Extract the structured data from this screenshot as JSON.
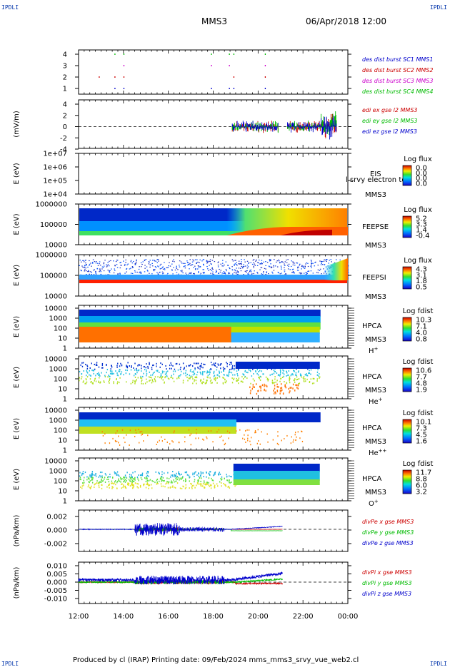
{
  "header": {
    "corner_left": "IPDLI",
    "corner_right": "IPDLI",
    "spacecraft": "MMS3",
    "datetime": "06/Apr/2018 12:00"
  },
  "footer": {
    "text": "Produced by cl (IRAP)   Printing date: 09/Feb/2024   mms_mms3_srvy_vue_web2.cl",
    "corner_left": "IPDLI",
    "corner_right": "IPDLI"
  },
  "x_axis": {
    "ticks": [
      "12:00",
      "14:00",
      "16:00",
      "18:00",
      "20:00",
      "22:00",
      "00:00"
    ],
    "start_hour": 12,
    "end_hour": 24
  },
  "colors": {
    "mms1": "#0000cc",
    "mms2": "#cc0000",
    "mms3": "#cc00cc",
    "mms4": "#00bb00",
    "x": "#cc0000",
    "y": "#00bb00",
    "z": "#0000cc"
  },
  "panels": {
    "burst": {
      "yticks": [
        "4",
        "3",
        "2",
        "1"
      ],
      "legend": [
        "des dist burst SC1 MMS1",
        "des dist burst SC2 MMS2",
        "des dist burst SC3 MMS3",
        "des dist burst SC4 MMS4"
      ]
    },
    "edi": {
      "ylabel": "(mV/m)",
      "yticks": [
        "4",
        "2",
        "0",
        "-2",
        "-4"
      ],
      "legend": [
        "edi ex gse l2 MMS3",
        "edi ey gse l2 MMS3",
        "edi ez gse l2 MMS3"
      ]
    },
    "eis": {
      "ylabel": "E (eV)",
      "yticks": [
        "1e+07",
        "1e+06",
        "1e+05",
        "1e+04"
      ],
      "name": "EIS",
      "overlay": "l srvy electron tof",
      "sc": "MMS3",
      "cb_title": "Log flux",
      "cb_ticks": [
        "0.0",
        "0.0",
        "0.0",
        "0.0"
      ]
    },
    "feepse": {
      "ylabel": "E (eV)",
      "yticks": [
        "1000000",
        "100000",
        "10000"
      ],
      "name": "FEEPSE",
      "sc": "MMS3",
      "cb_title": "Log flux",
      "cb_ticks": [
        "5.2",
        "3.3",
        "1.4",
        "-0.4"
      ]
    },
    "feepsi": {
      "ylabel": "E (eV)",
      "yticks": [
        "1000000",
        "100000",
        "10000"
      ],
      "name": "FEEPSI",
      "sc": "MMS3",
      "cb_title": "Log flux",
      "cb_ticks": [
        "4.3",
        "3.1",
        "1.8",
        "0.5"
      ]
    },
    "hpca_h": {
      "ylabel": "E (eV)",
      "yticks": [
        "10000",
        "1000",
        "100",
        "10",
        "1"
      ],
      "name": "HPCA",
      "sc": "MMS3",
      "species": "H",
      "charge": "+",
      "cb_title": "Log fdist",
      "cb_ticks": [
        "10.3",
        "7.1",
        "4.0",
        "0.8"
      ]
    },
    "hpca_he": {
      "ylabel": "E (eV)",
      "yticks": [
        "10000",
        "1000",
        "100",
        "10",
        "1"
      ],
      "name": "HPCA",
      "sc": "MMS3",
      "species": "He",
      "charge": "+",
      "cb_title": "Log fdist",
      "cb_ticks": [
        "10.6",
        "7.7",
        "4.8",
        "1.9"
      ]
    },
    "hpca_hepp": {
      "ylabel": "E (eV)",
      "yticks": [
        "10000",
        "1000",
        "100",
        "10",
        "1"
      ],
      "name": "HPCA",
      "sc": "MMS3",
      "species": "He",
      "charge": "++",
      "cb_title": "Log fdist",
      "cb_ticks": [
        "10.1",
        "7.3",
        "4.5",
        "1.6"
      ]
    },
    "hpca_o": {
      "ylabel": "E (eV)",
      "yticks": [
        "10000",
        "1000",
        "100",
        "10",
        "1"
      ],
      "name": "HPCA",
      "sc": "MMS3",
      "species": "O",
      "charge": "+",
      "cb_title": "Log fdist",
      "cb_ticks": [
        "11.7",
        "8.8",
        "6.0",
        "3.2"
      ]
    },
    "divpe": {
      "ylabel": "(nPa/km)",
      "yticks": [
        "0.002",
        "0.000",
        "-0.002"
      ],
      "legend": [
        "divPe x gse MMS3",
        "divPe y gse MMS3",
        "divPe z gse MMS3"
      ]
    },
    "divpi": {
      "ylabel": "(nPa/km)",
      "yticks": [
        "0.010",
        "0.005",
        "0.000",
        "-0.005",
        "-0.010"
      ],
      "legend": [
        "divPi x gse MMS3",
        "divPi y gse MMS3",
        "divPi z gse MMS3"
      ]
    }
  },
  "chart_data": [
    {
      "type": "scatter",
      "title": "",
      "ylabel": "",
      "ylim": [
        0.5,
        4.5
      ],
      "series": [
        {
          "name": "des dist burst SC1 MMS1"
        },
        {
          "name": "des dist burst SC2 MMS2"
        },
        {
          "name": "des dist burst SC3 MMS3"
        },
        {
          "name": "des dist burst SC4 MMS4"
        }
      ]
    },
    {
      "type": "line",
      "ylabel": "(mV/m)",
      "ylim": [
        -4,
        4
      ],
      "series": [
        {
          "name": "edi ex gse l2 MMS3"
        },
        {
          "name": "edi ey gse l2 MMS3"
        },
        {
          "name": "edi ez gse l2 MMS3"
        }
      ]
    },
    {
      "type": "heatmap",
      "ylabel": "E (eV)",
      "ylim": [
        10000,
        10000000
      ],
      "yscale": "log",
      "colorbar": [
        0.0,
        0.0
      ]
    },
    {
      "type": "heatmap",
      "ylabel": "E (eV)",
      "ylim": [
        10000,
        1000000
      ],
      "yscale": "log",
      "colorbar": [
        -0.4,
        5.2
      ]
    },
    {
      "type": "heatmap",
      "ylabel": "E (eV)",
      "ylim": [
        10000,
        1000000
      ],
      "yscale": "log",
      "colorbar": [
        0.5,
        4.3
      ]
    },
    {
      "type": "heatmap",
      "ylabel": "E (eV)",
      "ylim": [
        1,
        10000
      ],
      "yscale": "log",
      "colorbar": [
        0.8,
        10.3
      ]
    },
    {
      "type": "heatmap",
      "ylabel": "E (eV)",
      "ylim": [
        1,
        10000
      ],
      "yscale": "log",
      "colorbar": [
        1.9,
        10.6
      ]
    },
    {
      "type": "heatmap",
      "ylabel": "E (eV)",
      "ylim": [
        1,
        10000
      ],
      "yscale": "log",
      "colorbar": [
        1.6,
        10.1
      ]
    },
    {
      "type": "heatmap",
      "ylabel": "E (eV)",
      "ylim": [
        1,
        10000
      ],
      "yscale": "log",
      "colorbar": [
        3.2,
        11.7
      ]
    },
    {
      "type": "line",
      "ylabel": "(nPa/km)",
      "ylim": [
        -0.003,
        0.003
      ],
      "series": [
        {
          "name": "divPe x gse MMS3"
        },
        {
          "name": "divPe y gse MMS3"
        },
        {
          "name": "divPe z gse MMS3"
        }
      ]
    },
    {
      "type": "line",
      "ylabel": "(nPa/km)",
      "ylim": [
        -0.012,
        0.012
      ],
      "series": [
        {
          "name": "divPi x gse MMS3"
        },
        {
          "name": "divPi y gse MMS3"
        },
        {
          "name": "divPi z gse MMS3"
        }
      ]
    }
  ]
}
